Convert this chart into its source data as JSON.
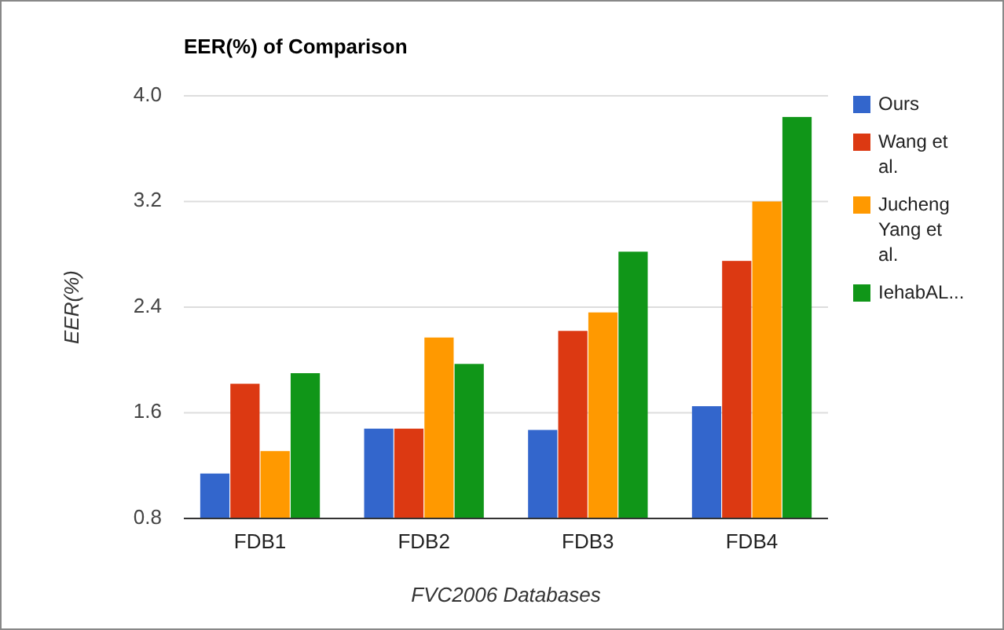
{
  "chart_data": {
    "type": "bar",
    "title": "EER(%) of Comparison",
    "xlabel": "FVC2006 Databases",
    "ylabel": "EER(%)",
    "categories": [
      "FDB1",
      "FDB2",
      "FDB3",
      "FDB4"
    ],
    "series": [
      {
        "name": "Ours",
        "color": "#3366cc",
        "values": [
          1.14,
          1.48,
          1.47,
          1.65
        ]
      },
      {
        "name": "Wang et al.",
        "color": "#dc3912",
        "values": [
          1.82,
          1.48,
          2.22,
          2.75
        ]
      },
      {
        "name": "Jucheng Yang et al.",
        "color": "#ff9900",
        "values": [
          1.31,
          2.17,
          2.36,
          3.2
        ]
      },
      {
        "name": "IehabAL...",
        "color": "#109618",
        "values": [
          1.9,
          1.97,
          2.82,
          3.84
        ]
      }
    ],
    "ylim": [
      0.8,
      4.0
    ],
    "yticks": [
      {
        "value": 0.8,
        "label": "0.8"
      },
      {
        "value": 1.6,
        "label": "1.6"
      },
      {
        "value": 2.4,
        "label": "2.4"
      },
      {
        "value": 3.2,
        "label": "3.2"
      },
      {
        "value": 4.0,
        "label": "4.0"
      }
    ],
    "grid": true,
    "legend": "right"
  }
}
